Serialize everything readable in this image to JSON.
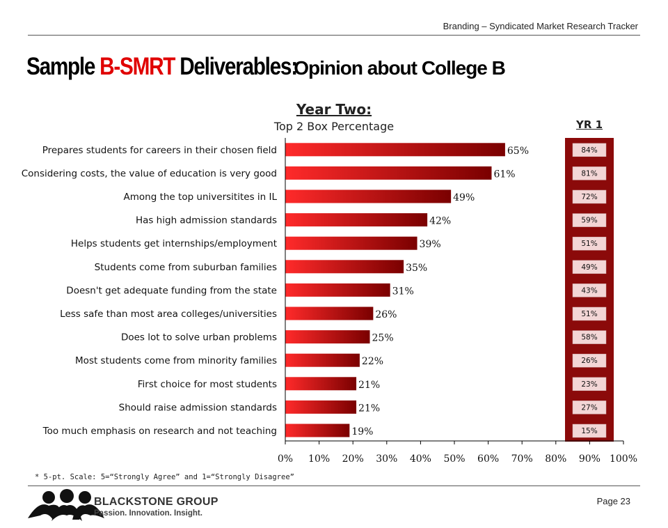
{
  "header": {
    "text": "Branding – Syndicated Market Research Tracker"
  },
  "title": {
    "part1": "Sample ",
    "part2": "B-SMRT",
    "part3": " Deliverables:",
    "part4": "  Opinion about College B"
  },
  "footer": {
    "footnote": "* 5-pt. Scale: 5=“Strongly Agree” and 1=“Strongly Disagree”",
    "page_label": "Page 23",
    "company": "BLACKSTONE GROUP",
    "tagline": "Passion. Innovation. Insight."
  },
  "colors": {
    "bar_dark": "#7a0000",
    "bar_light": "#ff2a2a",
    "yr1_column": "#8b0a0a",
    "yr1_box": "#f3d6d6",
    "title_red": "#e00000"
  },
  "icons": [
    "logo-people-icon"
  ],
  "chart_data": {
    "type": "bar",
    "orientation": "horizontal",
    "title": "Year Two:",
    "subtitle": "Top 2 Box Percentage",
    "categories": [
      "Prepares students for careers in their chosen field",
      "Considering costs, the value of education is very good",
      "Among the top universitites in IL",
      "Has high admission standards",
      "Helps students get internships/employment",
      "Students come from suburban families",
      "Doesn't get adequate funding from the state",
      "Less safe than most area colleges/universities",
      "Does lot to solve urban problems",
      "Most students come from minority families",
      "First choice for most students",
      "Should raise admission standards",
      "Too much emphasis on research and not teaching"
    ],
    "values": [
      65,
      61,
      49,
      42,
      39,
      35,
      31,
      26,
      25,
      22,
      21,
      21,
      19
    ],
    "value_labels": [
      "65%",
      "61%",
      "49%",
      "42%",
      "39%",
      "35%",
      "31%",
      "26%",
      "25%",
      "22%",
      "21%",
      "21%",
      "19%"
    ],
    "xlim": [
      0,
      100
    ],
    "xticks": [
      "0%",
      "10%",
      "20%",
      "30%",
      "40%",
      "50%",
      "60%",
      "70%",
      "80%",
      "90%",
      "100%"
    ],
    "comparison": {
      "title": "YR 1",
      "values": [
        84,
        81,
        72,
        59,
        51,
        49,
        43,
        51,
        58,
        26,
        23,
        27,
        15
      ],
      "labels": [
        "84%",
        "81%",
        "72%",
        "59%",
        "51%",
        "49%",
        "43%",
        "51%",
        "58%",
        "26%",
        "23%",
        "27%",
        "15%"
      ]
    },
    "grid": false,
    "legend": "none"
  }
}
